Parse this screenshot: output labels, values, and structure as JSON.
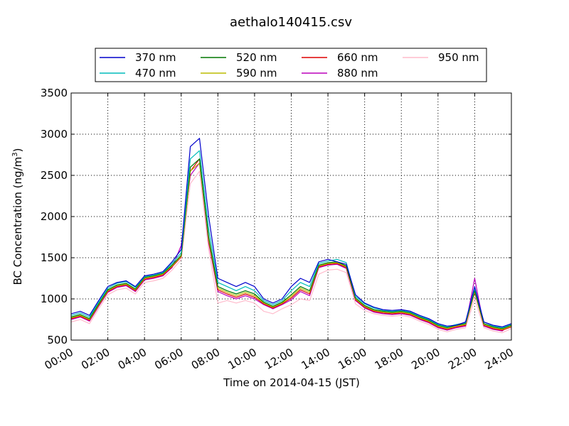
{
  "chart_data": {
    "type": "line",
    "title": "aethalo140415.csv",
    "xlabel": "Time on 2014-04-15 (JST)",
    "ylabel": "BC Concentration (ng/m",
    "ylabel_sup": "3",
    "ylabel_close": ")",
    "x_unit": "hour",
    "xlim": [
      0,
      24
    ],
    "ylim": [
      500,
      3500
    ],
    "grid": true,
    "legend_position": "top, above plot area",
    "x_ticks": [
      {
        "value": 0,
        "label": "00:00"
      },
      {
        "value": 2,
        "label": "02:00"
      },
      {
        "value": 4,
        "label": "04:00"
      },
      {
        "value": 6,
        "label": "06:00"
      },
      {
        "value": 8,
        "label": "08:00"
      },
      {
        "value": 10,
        "label": "10:00"
      },
      {
        "value": 12,
        "label": "12:00"
      },
      {
        "value": 14,
        "label": "14:00"
      },
      {
        "value": 16,
        "label": "16:00"
      },
      {
        "value": 18,
        "label": "18:00"
      },
      {
        "value": 20,
        "label": "20:00"
      },
      {
        "value": 22,
        "label": "22:00"
      },
      {
        "value": 24,
        "label": "24:00"
      }
    ],
    "y_ticks": [
      500,
      1000,
      1500,
      2000,
      2500,
      3000,
      3500
    ],
    "x": [
      0,
      0.5,
      1,
      1.5,
      2,
      2.5,
      3,
      3.5,
      4,
      4.5,
      5,
      5.5,
      6,
      6.5,
      7,
      7.5,
      8,
      8.5,
      9,
      9.5,
      10,
      10.5,
      11,
      11.5,
      12,
      12.5,
      13,
      13.5,
      14,
      14.5,
      15,
      15.5,
      16,
      16.5,
      17,
      17.5,
      18,
      18.5,
      19,
      19.5,
      20,
      20.5,
      21,
      21.5,
      22,
      22.5,
      23,
      23.5,
      24
    ],
    "series": [
      {
        "name": "370 nm",
        "color": "#0000cc",
        "values": [
          820,
          850,
          800,
          980,
          1150,
          1200,
          1220,
          1150,
          1280,
          1300,
          1330,
          1450,
          1600,
          2850,
          2950,
          2000,
          1250,
          1200,
          1150,
          1200,
          1150,
          1000,
          950,
          1000,
          1150,
          1250,
          1200,
          1450,
          1480,
          1450,
          1420,
          1050,
          950,
          900,
          870,
          860,
          870,
          850,
          800,
          760,
          700,
          670,
          680,
          720,
          1150,
          720,
          680,
          660,
          700
        ]
      },
      {
        "name": "470 nm",
        "color": "#00bbbb",
        "values": [
          800,
          830,
          780,
          960,
          1130,
          1190,
          1210,
          1140,
          1270,
          1290,
          1320,
          1430,
          1560,
          2700,
          2800,
          1850,
          1200,
          1150,
          1100,
          1150,
          1100,
          980,
          930,
          980,
          1100,
          1200,
          1150,
          1430,
          1460,
          1480,
          1440,
          1030,
          940,
          890,
          860,
          850,
          860,
          840,
          790,
          750,
          690,
          660,
          690,
          710,
          1130,
          720,
          670,
          650,
          690
        ]
      },
      {
        "name": "520 nm",
        "color": "#007700",
        "values": [
          780,
          810,
          760,
          940,
          1110,
          1170,
          1190,
          1120,
          1260,
          1280,
          1310,
          1410,
          1530,
          2600,
          2700,
          1750,
          1150,
          1100,
          1060,
          1100,
          1060,
          960,
          910,
          960,
          1050,
          1150,
          1100,
          1410,
          1440,
          1450,
          1400,
          1010,
          920,
          870,
          850,
          840,
          850,
          830,
          780,
          740,
          680,
          650,
          680,
          700,
          1100,
          700,
          660,
          640,
          680
        ]
      },
      {
        "name": "590 nm",
        "color": "#bbbb00",
        "values": [
          770,
          800,
          750,
          930,
          1100,
          1160,
          1180,
          1110,
          1250,
          1270,
          1300,
          1400,
          1520,
          2550,
          2650,
          1720,
          1130,
          1080,
          1040,
          1080,
          1040,
          950,
          900,
          950,
          1030,
          1130,
          1080,
          1400,
          1430,
          1440,
          1390,
          1000,
          910,
          860,
          840,
          830,
          840,
          820,
          770,
          730,
          670,
          640,
          670,
          690,
          1090,
          690,
          650,
          630,
          670
        ]
      },
      {
        "name": "660 nm",
        "color": "#dd0000",
        "values": [
          760,
          790,
          740,
          920,
          1090,
          1150,
          1170,
          1100,
          1240,
          1260,
          1290,
          1390,
          1510,
          2550,
          2700,
          1700,
          1110,
          1060,
          1020,
          1060,
          1020,
          940,
          890,
          940,
          1010,
          1110,
          1060,
          1390,
          1420,
          1430,
          1380,
          990,
          900,
          850,
          830,
          820,
          830,
          810,
          760,
          720,
          660,
          630,
          660,
          680,
          1080,
          680,
          640,
          620,
          660
        ]
      },
      {
        "name": "880 nm",
        "color": "#bb00bb",
        "values": [
          750,
          780,
          730,
          910,
          1080,
          1140,
          1160,
          1090,
          1230,
          1250,
          1280,
          1380,
          1650,
          2500,
          2650,
          1680,
          1090,
          1040,
          1000,
          1040,
          1000,
          930,
          880,
          930,
          990,
          1090,
          1040,
          1380,
          1410,
          1420,
          1370,
          980,
          890,
          840,
          820,
          810,
          820,
          800,
          750,
          710,
          650,
          620,
          650,
          670,
          1250,
          670,
          630,
          610,
          700
        ]
      },
      {
        "name": "950 nm",
        "color": "#ffbbcc",
        "values": [
          720,
          750,
          700,
          880,
          1050,
          1110,
          1130,
          1060,
          1200,
          1220,
          1250,
          1350,
          1480,
          2400,
          2550,
          1600,
          950,
          980,
          950,
          980,
          950,
          850,
          820,
          880,
          930,
          1000,
          980,
          1300,
          1350,
          1360,
          1320,
          940,
          860,
          820,
          800,
          790,
          800,
          780,
          730,
          690,
          630,
          600,
          630,
          650,
          1000,
          650,
          610,
          590,
          640
        ]
      }
    ]
  }
}
